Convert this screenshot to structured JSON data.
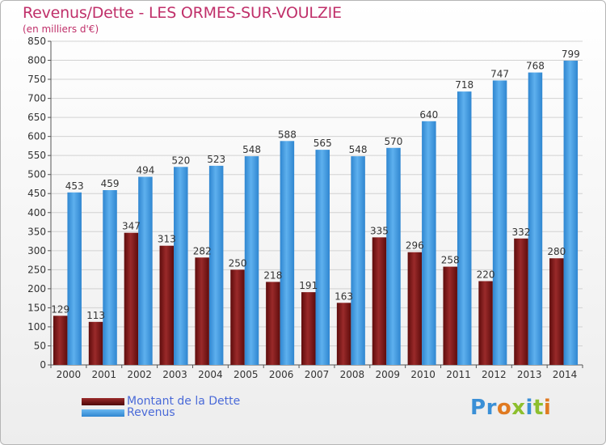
{
  "header": {
    "title": "Revenus/Dette - LES ORMES-SUR-VOULZIE",
    "subtitle": "(en milliers d'€)"
  },
  "legend": {
    "items": [
      {
        "label": "Montant de la Dette",
        "color": "#8b1a1a"
      },
      {
        "label": "Revenus",
        "color": "#4aa3e8"
      }
    ]
  },
  "logo": {
    "text": "Proxiti"
  },
  "chart_data": {
    "type": "bar",
    "title": "Revenus/Dette - LES ORMES-SUR-VOULZIE",
    "subtitle": "(en milliers d'€)",
    "categories": [
      "2000",
      "2001",
      "2002",
      "2003",
      "2004",
      "2005",
      "2006",
      "2007",
      "2008",
      "2009",
      "2010",
      "2011",
      "2012",
      "2013",
      "2014"
    ],
    "series": [
      {
        "name": "Montant de la Dette",
        "color": "#8b1a1a",
        "values": [
          129,
          113,
          347,
          313,
          282,
          250,
          218,
          191,
          163,
          335,
          296,
          258,
          220,
          332,
          280
        ]
      },
      {
        "name": "Revenus",
        "color": "#4aa3e8",
        "values": [
          453,
          459,
          494,
          520,
          523,
          548,
          588,
          565,
          548,
          570,
          640,
          718,
          747,
          768,
          799
        ]
      }
    ],
    "ylim": [
      0,
      850
    ],
    "ytick_step": 50,
    "grid": true,
    "legend_position": "bottom-left"
  }
}
